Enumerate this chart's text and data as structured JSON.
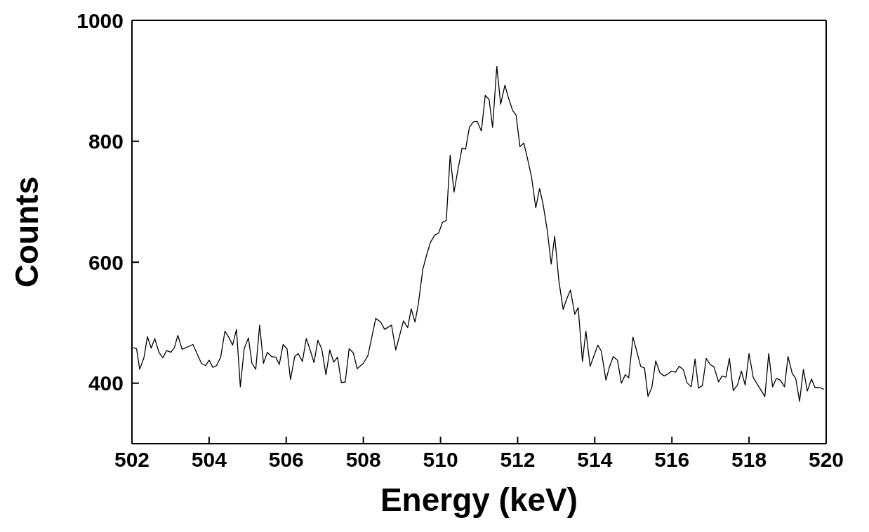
{
  "chart_data": {
    "type": "line",
    "xlabel": "Energy (keV)",
    "ylabel": "Counts",
    "xlim": [
      502,
      520
    ],
    "xticks": [
      502,
      504,
      506,
      508,
      510,
      512,
      514,
      516,
      518,
      520
    ],
    "ylim": [
      300,
      1000
    ],
    "yticks": [
      400,
      600,
      800,
      1000
    ],
    "legend": false,
    "marker": "none",
    "line_style": "solid",
    "series": [
      {
        "color": "#000000",
        "x": [
          502.03,
          502.12,
          502.2,
          502.31,
          502.4,
          502.5,
          502.59,
          502.7,
          502.8,
          502.9,
          503.01,
          503.1,
          503.19,
          503.3,
          503.58,
          503.8,
          503.91,
          504.0,
          504.1,
          504.19,
          504.3,
          504.41,
          504.51,
          504.61,
          504.71,
          504.81,
          504.91,
          505.02,
          505.11,
          505.21,
          505.31,
          505.41,
          505.51,
          505.62,
          505.73,
          505.82,
          505.92,
          506.02,
          506.11,
          506.22,
          506.31,
          506.42,
          506.52,
          506.62,
          506.72,
          506.82,
          506.92,
          507.03,
          507.13,
          507.23,
          507.33,
          507.43,
          507.53,
          507.63,
          507.74,
          507.84,
          508.0,
          508.12,
          508.32,
          508.45,
          508.55,
          508.73,
          508.84,
          509.04,
          509.15,
          509.24,
          509.34,
          509.43,
          509.54,
          509.64,
          509.74,
          509.85,
          509.95,
          510.05,
          510.15,
          510.25,
          510.35,
          510.46,
          510.56,
          510.65,
          510.75,
          510.85,
          510.95,
          511.06,
          511.16,
          511.26,
          511.35,
          511.46,
          511.56,
          511.67,
          511.76,
          511.87,
          511.96,
          512.06,
          512.16,
          512.26,
          512.36,
          512.47,
          512.57,
          512.66,
          512.77,
          512.87,
          512.96,
          513.07,
          513.18,
          513.27,
          513.37,
          513.48,
          513.57,
          513.68,
          513.77,
          513.88,
          514.08,
          514.17,
          514.29,
          514.38,
          514.48,
          514.59,
          514.69,
          514.79,
          514.88,
          514.99,
          515.08,
          515.19,
          515.29,
          515.38,
          515.48,
          515.58,
          515.69,
          515.8,
          515.89,
          515.99,
          516.09,
          516.19,
          516.3,
          516.39,
          516.5,
          516.6,
          516.69,
          516.79,
          516.89,
          516.99,
          517.09,
          517.21,
          517.3,
          517.4,
          517.49,
          517.59,
          517.7,
          517.8,
          517.9,
          518.0,
          518.11,
          518.41,
          518.51,
          518.61,
          518.71,
          518.81,
          518.92,
          519.01,
          519.12,
          519.21,
          519.31,
          519.41,
          519.51,
          519.62,
          519.71,
          519.82,
          519.94
        ],
        "values": [
          459,
          457,
          423,
          442,
          477,
          458,
          474,
          451,
          442,
          454,
          451,
          459,
          479,
          456,
          464,
          433,
          429,
          438,
          426,
          429,
          443,
          486,
          476,
          463,
          489,
          394,
          457,
          475,
          433,
          423,
          496,
          433,
          451,
          444,
          443,
          431,
          464,
          457,
          406,
          444,
          449,
          436,
          474,
          455,
          434,
          471,
          457,
          414,
          455,
          435,
          443,
          401,
          402,
          457,
          450,
          424,
          433,
          446,
          507,
          501,
          489,
          496,
          455,
          503,
          492,
          523,
          501,
          533,
          588,
          612,
          633,
          645,
          648,
          666,
          669,
          777,
          716,
          756,
          789,
          787,
          823,
          832,
          833,
          817,
          876,
          869,
          823,
          924,
          861,
          893,
          872,
          851,
          843,
          791,
          797,
          770,
          741,
          690,
          722,
          696,
          652,
          597,
          643,
          569,
          522,
          539,
          554,
          514,
          525,
          436,
          486,
          428,
          463,
          453,
          405,
          427,
          444,
          438,
          400,
          414,
          409,
          476,
          455,
          428,
          425,
          378,
          393,
          437,
          417,
          412,
          415,
          420,
          418,
          428,
          422,
          401,
          394,
          440,
          392,
          396,
          441,
          431,
          427,
          402,
          412,
          410,
          441,
          388,
          397,
          420,
          397,
          449,
          409,
          378,
          449,
          394,
          408,
          405,
          394,
          444,
          416,
          408,
          370,
          423,
          387,
          407,
          393,
          393,
          390
        ]
      }
    ]
  }
}
